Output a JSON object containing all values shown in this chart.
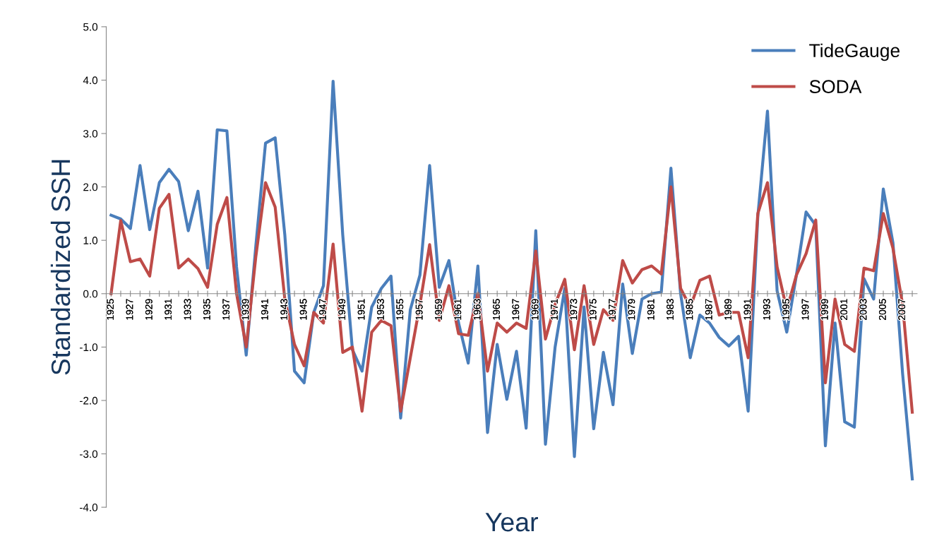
{
  "chart_data": {
    "type": "line",
    "xlabel": "Year",
    "ylabel": "Standardized SSH",
    "categories": [
      "1925",
      null,
      "1927",
      null,
      "1929",
      null,
      "1931",
      null,
      "1933",
      null,
      "1935",
      null,
      "1937",
      null,
      "1939",
      null,
      "1941",
      null,
      "1943",
      null,
      "1945",
      null,
      "1947",
      null,
      "1949",
      null,
      "1951",
      null,
      "1953",
      null,
      "1955",
      null,
      "1957",
      null,
      "1959",
      null,
      "1961",
      null,
      "1963",
      null,
      "1965",
      null,
      "1967",
      null,
      "1969",
      null,
      "1971",
      null,
      "1973",
      null,
      "1975",
      null,
      "1977",
      null,
      "1979",
      null,
      "1981",
      null,
      "1983",
      null,
      "1985",
      null,
      "1987",
      null,
      "1989",
      null,
      "1991",
      null,
      "1993",
      null,
      "1995",
      null,
      "1997",
      null,
      "1999",
      null,
      "2001",
      null,
      "2003",
      null,
      "2005",
      null,
      "2007",
      null
    ],
    "series": [
      {
        "name": "TideGauge",
        "color": "#4a7ebb",
        "values": [
          1.47,
          1.4,
          1.22,
          2.4,
          1.2,
          2.08,
          2.33,
          2.1,
          1.18,
          1.92,
          0.48,
          3.07,
          3.05,
          0.5,
          -1.15,
          0.9,
          2.82,
          2.92,
          1.1,
          -1.45,
          -1.67,
          -0.35,
          0.15,
          3.98,
          1.1,
          -1.05,
          -1.45,
          -0.25,
          0.1,
          0.33,
          -2.33,
          -0.3,
          0.35,
          2.4,
          0.12,
          0.62,
          -0.55,
          -1.3,
          0.52,
          -2.6,
          -0.95,
          -1.98,
          -1.08,
          -2.52,
          1.18,
          -2.82,
          -1.0,
          0.1,
          -3.05,
          -0.25,
          -2.53,
          -1.1,
          -2.08,
          0.18,
          -1.12,
          -0.1,
          0.0,
          0.03,
          2.35,
          0.0,
          -1.2,
          -0.4,
          -0.55,
          -0.82,
          -0.98,
          -0.8,
          -2.2,
          1.45,
          3.42,
          0.05,
          -0.72,
          0.35,
          1.53,
          1.28,
          -2.85,
          -0.55,
          -2.4,
          -2.5,
          0.28,
          -0.1,
          1.96,
          0.95,
          -1.5,
          -3.47
        ]
      },
      {
        "name": "SODA",
        "color": "#be4b48",
        "values": [
          0.0,
          1.37,
          0.6,
          0.65,
          0.33,
          1.6,
          1.86,
          0.48,
          0.65,
          0.47,
          0.12,
          1.3,
          1.8,
          0.0,
          -1.0,
          0.7,
          2.08,
          1.62,
          -0.1,
          -0.95,
          -1.35,
          -0.35,
          -0.55,
          0.93,
          -1.1,
          -1.0,
          -2.2,
          -0.72,
          -0.5,
          -0.6,
          -2.2,
          -1.2,
          -0.2,
          0.92,
          -0.5,
          0.15,
          -0.75,
          -0.78,
          0.0,
          -1.45,
          -0.55,
          -0.72,
          -0.55,
          -0.65,
          0.8,
          -0.85,
          -0.2,
          0.27,
          -1.05,
          0.15,
          -0.95,
          -0.3,
          -0.5,
          0.62,
          0.2,
          0.45,
          0.52,
          0.37,
          2.0,
          0.1,
          -0.25,
          0.25,
          0.33,
          -0.4,
          -0.35,
          -0.35,
          -1.2,
          1.5,
          2.08,
          0.5,
          -0.3,
          0.35,
          0.75,
          1.38,
          -1.67,
          -0.1,
          -0.95,
          -1.08,
          0.48,
          0.43,
          1.5,
          0.85,
          -0.2,
          -2.22
        ]
      }
    ],
    "ylim": [
      -4,
      5
    ],
    "yticks": [
      {
        "value": -4,
        "label": "-4.0"
      },
      {
        "value": -3,
        "label": "-3.0"
      },
      {
        "value": -2,
        "label": "-2.0"
      },
      {
        "value": -1,
        "label": "-1.0"
      },
      {
        "value": 0,
        "label": "0.0"
      },
      {
        "value": 1,
        "label": "1.0"
      },
      {
        "value": 2,
        "label": "2.0"
      },
      {
        "value": 3,
        "label": "3.0"
      },
      {
        "value": 4,
        "label": "4.0"
      },
      {
        "value": 5,
        "label": "5.0"
      }
    ],
    "grid": false,
    "legend": "top right",
    "marker": "none",
    "line_style": "solid"
  }
}
